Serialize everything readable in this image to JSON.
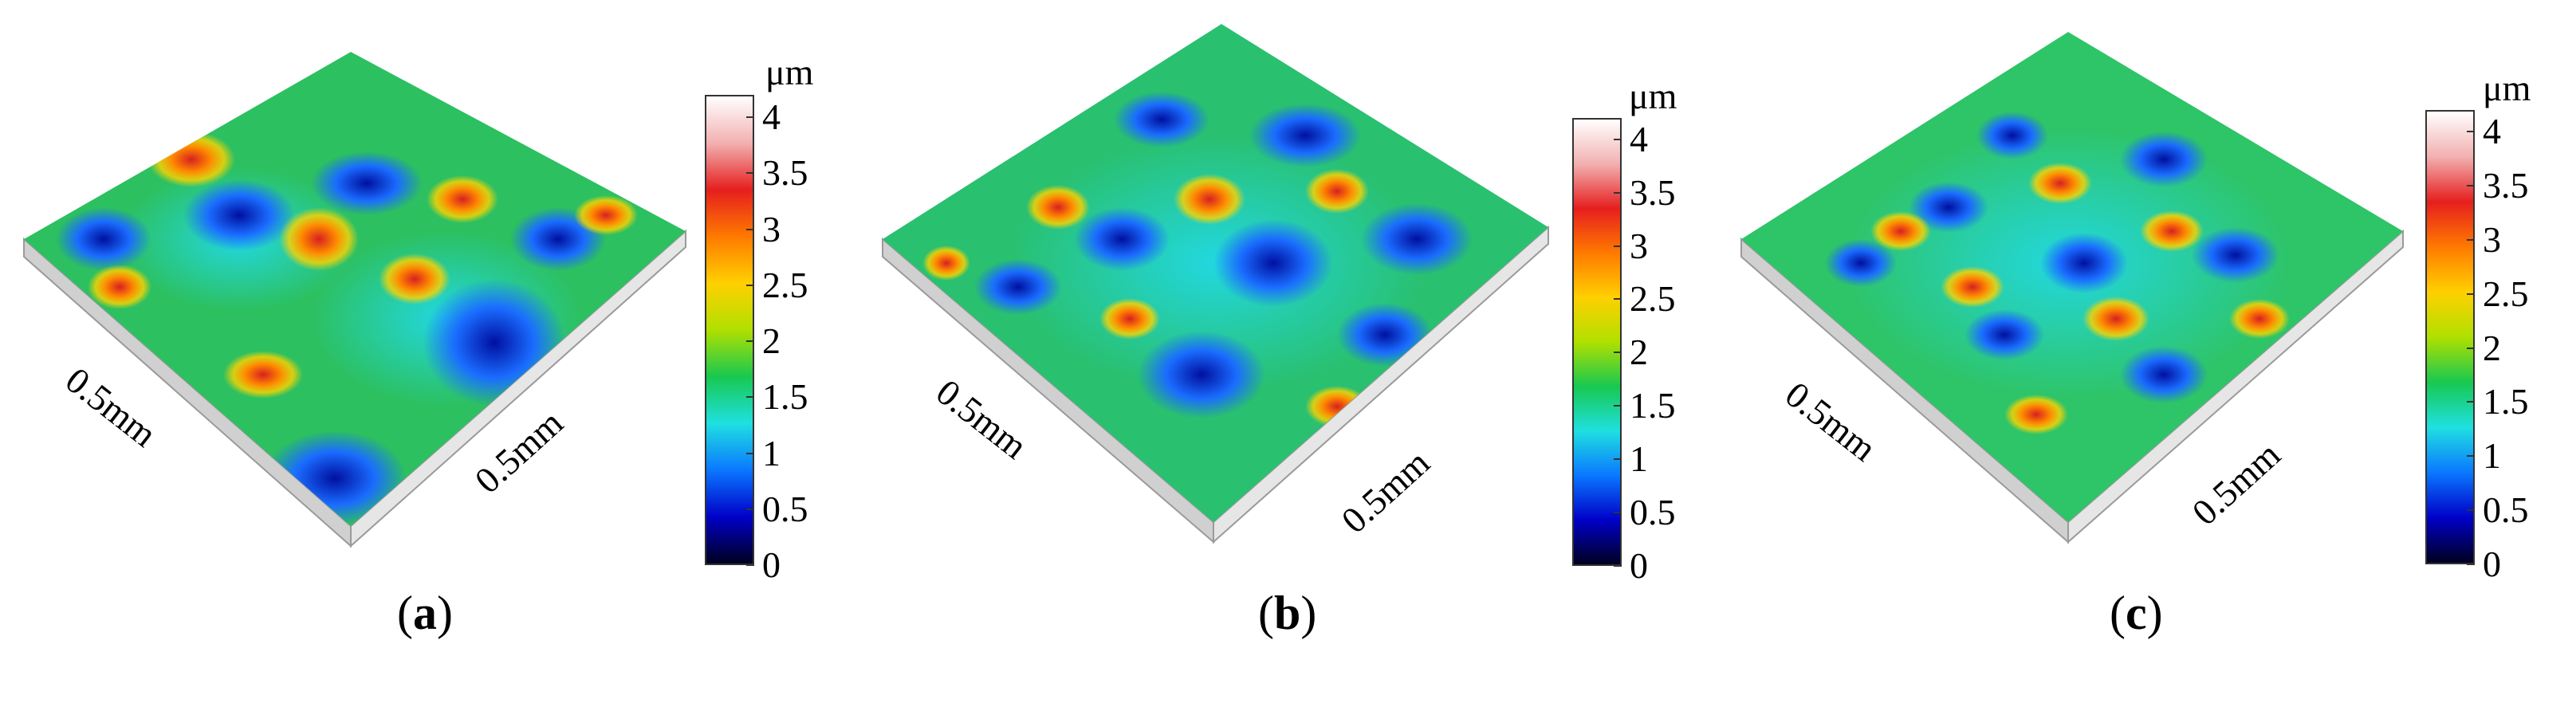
{
  "colorbar": {
    "unit": "μm",
    "ticks": [
      "4",
      "3.5",
      "3",
      "2.5",
      "2",
      "1.5",
      "1",
      "0.5",
      "0"
    ],
    "gradient": [
      "#000020",
      "#0000c8",
      "#0a78ff",
      "#1fe0e0",
      "#18c850",
      "#b0e000",
      "#ffd000",
      "#ff7a00",
      "#e61e1e",
      "#f2b0b0",
      "#ffffff"
    ]
  },
  "panels": [
    {
      "caption_open": "(",
      "caption_letter": "a",
      "caption_close": ")",
      "left_axis": "0.5mm",
      "right_axis": "0.5mm"
    },
    {
      "caption_open": "(",
      "caption_letter": "b",
      "caption_close": ")",
      "left_axis": "0.5mm",
      "right_axis": "0.5mm"
    },
    {
      "caption_open": "(",
      "caption_letter": "c",
      "caption_close": ")",
      "left_axis": "0.5mm",
      "right_axis": "0.5mm"
    }
  ]
}
